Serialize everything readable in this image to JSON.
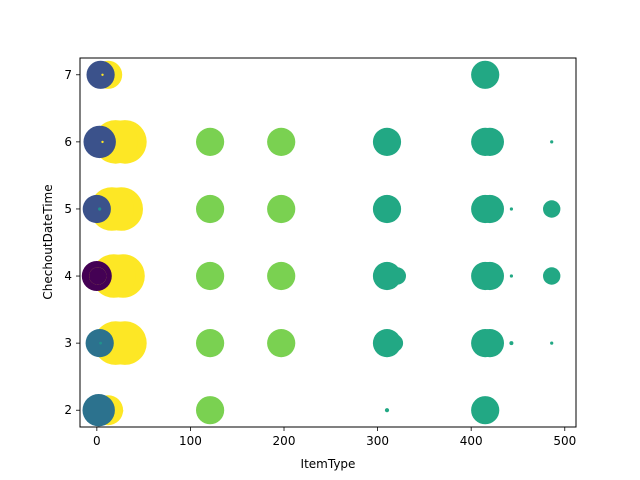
{
  "chart_data": {
    "type": "scatter",
    "title": "",
    "xlabel": "ItemType",
    "ylabel": "ChechoutDateTime",
    "xlim": [
      -18,
      512
    ],
    "ylim": [
      1.75,
      7.25
    ],
    "xticks": [
      0,
      100,
      200,
      300,
      400,
      500
    ],
    "yticks": [
      2,
      3,
      4,
      5,
      6,
      7
    ],
    "grid": false,
    "colormap": "viridis",
    "colors": {
      "purple": "#440154",
      "indigo": "#3b528b",
      "blue": "#2c728e",
      "teal": "#21918c",
      "sea": "#22a884",
      "green": "#7ad151",
      "yellow": "#fde725"
    },
    "points": [
      {
        "x": 30,
        "y": 6,
        "size": 1900,
        "color": "yellow"
      },
      {
        "x": 26,
        "y": 5,
        "size": 1900,
        "color": "yellow"
      },
      {
        "x": 28,
        "y": 4,
        "size": 1900,
        "color": "yellow"
      },
      {
        "x": 30,
        "y": 3,
        "size": 1900,
        "color": "yellow"
      },
      {
        "x": 20,
        "y": 6,
        "size": 1900,
        "color": "yellow"
      },
      {
        "x": 16,
        "y": 5,
        "size": 1900,
        "color": "yellow"
      },
      {
        "x": 18,
        "y": 4,
        "size": 1900,
        "color": "yellow"
      },
      {
        "x": 20,
        "y": 3,
        "size": 1900,
        "color": "yellow"
      },
      {
        "x": 12,
        "y": 7,
        "size": 800,
        "color": "yellow"
      },
      {
        "x": 12,
        "y": 2,
        "size": 900,
        "color": "yellow"
      },
      {
        "x": 26,
        "y": 1.99,
        "size": 18,
        "color": "yellow"
      },
      {
        "x": 4,
        "y": 7,
        "size": 800,
        "color": "indigo"
      },
      {
        "x": 3,
        "y": 6,
        "size": 1050,
        "color": "indigo"
      },
      {
        "x": 0,
        "y": 5,
        "size": 800,
        "color": "indigo"
      },
      {
        "x": 0,
        "y": 4,
        "size": 900,
        "color": "purple"
      },
      {
        "x": 3,
        "y": 3,
        "size": 800,
        "color": "blue"
      },
      {
        "x": 2,
        "y": 2,
        "size": 1050,
        "color": "blue"
      },
      {
        "x": 1,
        "y": 4,
        "size": 300,
        "color": "yellow"
      },
      {
        "x": 1,
        "y": 4,
        "size": 300,
        "color": "purple"
      },
      {
        "x": 6,
        "y": 7,
        "size": 6,
        "color": "yellow"
      },
      {
        "x": 6,
        "y": 6,
        "size": 6,
        "color": "yellow"
      },
      {
        "x": 3,
        "y": 5,
        "size": 10,
        "color": "teal"
      },
      {
        "x": 4,
        "y": 3,
        "size": 8,
        "color": "teal"
      },
      {
        "x": 121,
        "y": 6,
        "size": 800,
        "color": "green"
      },
      {
        "x": 121,
        "y": 5,
        "size": 800,
        "color": "green"
      },
      {
        "x": 121,
        "y": 4,
        "size": 800,
        "color": "green"
      },
      {
        "x": 121,
        "y": 3,
        "size": 800,
        "color": "green"
      },
      {
        "x": 121,
        "y": 2,
        "size": 800,
        "color": "green"
      },
      {
        "x": 197,
        "y": 6,
        "size": 800,
        "color": "green"
      },
      {
        "x": 197,
        "y": 5,
        "size": 800,
        "color": "green"
      },
      {
        "x": 197,
        "y": 4,
        "size": 800,
        "color": "green"
      },
      {
        "x": 197,
        "y": 3,
        "size": 800,
        "color": "green"
      },
      {
        "x": 321,
        "y": 4,
        "size": 300,
        "color": "sea"
      },
      {
        "x": 318,
        "y": 3,
        "size": 300,
        "color": "sea"
      },
      {
        "x": 310,
        "y": 6,
        "size": 800,
        "color": "sea"
      },
      {
        "x": 310,
        "y": 5,
        "size": 800,
        "color": "sea"
      },
      {
        "x": 310,
        "y": 4,
        "size": 800,
        "color": "sea"
      },
      {
        "x": 310,
        "y": 3,
        "size": 800,
        "color": "sea"
      },
      {
        "x": 310,
        "y": 2,
        "size": 18,
        "color": "sea"
      },
      {
        "x": 420,
        "y": 6,
        "size": 800,
        "color": "sea"
      },
      {
        "x": 420,
        "y": 5,
        "size": 800,
        "color": "sea"
      },
      {
        "x": 420,
        "y": 4,
        "size": 800,
        "color": "sea"
      },
      {
        "x": 420,
        "y": 3,
        "size": 800,
        "color": "sea"
      },
      {
        "x": 415,
        "y": 7,
        "size": 800,
        "color": "sea"
      },
      {
        "x": 415,
        "y": 6,
        "size": 800,
        "color": "sea"
      },
      {
        "x": 415,
        "y": 5,
        "size": 800,
        "color": "sea"
      },
      {
        "x": 415,
        "y": 4,
        "size": 800,
        "color": "sea"
      },
      {
        "x": 415,
        "y": 3,
        "size": 800,
        "color": "sea"
      },
      {
        "x": 415,
        "y": 2,
        "size": 800,
        "color": "sea"
      },
      {
        "x": 443,
        "y": 5,
        "size": 10,
        "color": "sea"
      },
      {
        "x": 443,
        "y": 4,
        "size": 10,
        "color": "sea"
      },
      {
        "x": 443,
        "y": 3,
        "size": 16,
        "color": "sea"
      },
      {
        "x": 486,
        "y": 6,
        "size": 10,
        "color": "sea"
      },
      {
        "x": 486,
        "y": 5,
        "size": 300,
        "color": "sea"
      },
      {
        "x": 486,
        "y": 4,
        "size": 300,
        "color": "sea"
      },
      {
        "x": 486,
        "y": 3,
        "size": 10,
        "color": "sea"
      }
    ]
  }
}
